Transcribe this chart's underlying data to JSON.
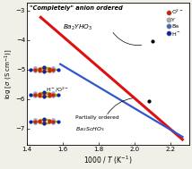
{
  "title_line1": "\"Completely\" anion ordered",
  "title_line2": "$Ba_2YHO_3$",
  "label_partial1": "Partially ordered",
  "label_partial2": "$Ba_2ScHO_3$",
  "label_hyo": "H$^-$/O$^{2-}$",
  "xlabel": "1000 / $T$ (K$^{-1}$)",
  "ylabel": "log [$\\sigma$ (S cm$^{-1}$)]",
  "xlim": [
    1.4,
    2.3
  ],
  "ylim": [
    -7.55,
    -2.75
  ],
  "yticks": [
    -7,
    -6,
    -5,
    -4,
    -3
  ],
  "xticks": [
    1.4,
    1.6,
    1.8,
    2.0,
    2.2
  ],
  "red_line_x": [
    1.47,
    2.27
  ],
  "red_line_y": [
    -3.2,
    -7.4
  ],
  "blue_line_x": [
    1.58,
    2.27
  ],
  "blue_line_y": [
    -4.8,
    -7.3
  ],
  "red_dot_x": 2.1,
  "red_dot_y": -4.05,
  "blue_dot_x": 2.08,
  "blue_dot_y": -6.08,
  "legend_items": [
    {
      "label": "O$^{2-}$",
      "color": "#cc2200"
    },
    {
      "label": "Y",
      "color": "#aaaaaa"
    },
    {
      "label": "Ba",
      "color": "#4466bb"
    },
    {
      "label": "H$^-$",
      "color": "#1122aa"
    }
  ],
  "bg_color": "#f0efe8",
  "plot_bg": "#ffffff",
  "red_color": "#dd1111",
  "blue_color": "#3355cc"
}
